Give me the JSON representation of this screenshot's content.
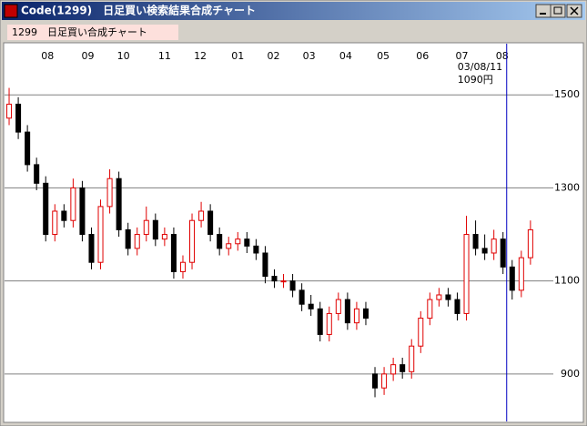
{
  "window": {
    "title": "Code(1299)　日足買い検索結果合成チャート"
  },
  "panel_label": "1299　日足買い合成チャート",
  "chart_data": {
    "type": "candlestick",
    "open": [
      1450,
      1480,
      1420,
      1350,
      1310,
      1200,
      1250,
      1230,
      1300,
      1200,
      1140,
      1260,
      1320,
      1210,
      1170,
      1200,
      1230,
      1190,
      1200,
      1120,
      1140,
      1230,
      1250,
      1200,
      1170,
      1180,
      1190,
      1175,
      1160,
      1110,
      1100,
      1100,
      1080,
      1050,
      1040,
      985,
      1030,
      1060,
      1010,
      1040,
      900,
      870,
      900,
      920,
      905,
      960,
      1020,
      1060,
      1070,
      1060,
      1030,
      1200,
      1170,
      1160,
      1190,
      1130,
      1080,
      1150
    ],
    "high": [
      1515,
      1495,
      1435,
      1365,
      1325,
      1265,
      1265,
      1320,
      1315,
      1215,
      1275,
      1340,
      1335,
      1225,
      1215,
      1260,
      1245,
      1215,
      1215,
      1155,
      1245,
      1270,
      1265,
      1215,
      1195,
      1205,
      1205,
      1190,
      1175,
      1125,
      1115,
      1115,
      1095,
      1070,
      1055,
      1045,
      1075,
      1075,
      1055,
      1055,
      915,
      915,
      935,
      935,
      975,
      1035,
      1075,
      1085,
      1085,
      1075,
      1240,
      1230,
      1200,
      1210,
      1205,
      1145,
      1165,
      1230
    ],
    "low": [
      1435,
      1405,
      1335,
      1295,
      1185,
      1185,
      1215,
      1215,
      1185,
      1125,
      1125,
      1245,
      1195,
      1155,
      1155,
      1185,
      1175,
      1175,
      1105,
      1105,
      1125,
      1215,
      1185,
      1155,
      1155,
      1165,
      1160,
      1145,
      1095,
      1085,
      1085,
      1065,
      1035,
      1025,
      970,
      970,
      1015,
      995,
      995,
      1005,
      850,
      855,
      885,
      890,
      890,
      945,
      1005,
      1045,
      1045,
      1015,
      1015,
      1155,
      1145,
      1145,
      1115,
      1060,
      1065,
      1135
    ],
    "close": [
      1480,
      1420,
      1350,
      1310,
      1200,
      1250,
      1230,
      1300,
      1200,
      1140,
      1260,
      1320,
      1210,
      1170,
      1200,
      1230,
      1190,
      1200,
      1120,
      1140,
      1230,
      1250,
      1200,
      1170,
      1180,
      1190,
      1175,
      1160,
      1110,
      1100,
      1100,
      1080,
      1050,
      1040,
      985,
      1030,
      1060,
      1010,
      1040,
      1020,
      870,
      900,
      920,
      905,
      960,
      1020,
      1060,
      1070,
      1060,
      1030,
      1200,
      1170,
      1160,
      1190,
      1130,
      1080,
      1150,
      1210
    ],
    "up_color": "#e00000",
    "down_color": "#000000",
    "grid_color": "#808080",
    "cursor_color": "#0000c0",
    "xlim": [
      -0.5,
      59.5
    ],
    "xticks": [
      {
        "value": 4.2,
        "label": "08"
      },
      {
        "value": 8.6,
        "label": "09"
      },
      {
        "value": 12.5,
        "label": "10"
      },
      {
        "value": 17.0,
        "label": "11"
      },
      {
        "value": 20.9,
        "label": "12"
      },
      {
        "value": 25.0,
        "label": "01"
      },
      {
        "value": 28.9,
        "label": "02"
      },
      {
        "value": 32.8,
        "label": "03"
      },
      {
        "value": 36.8,
        "label": "04"
      },
      {
        "value": 40.9,
        "label": "05"
      },
      {
        "value": 45.2,
        "label": "06"
      },
      {
        "value": 49.5,
        "label": "07"
      },
      {
        "value": 53.9,
        "label": "08"
      }
    ],
    "ylim": [
      798,
      1610
    ],
    "yticks": [
      900,
      1100,
      1300,
      1500
    ],
    "grid": true,
    "cursor": {
      "x": 54.4,
      "date": "03/08/11",
      "price": "1090円"
    }
  }
}
